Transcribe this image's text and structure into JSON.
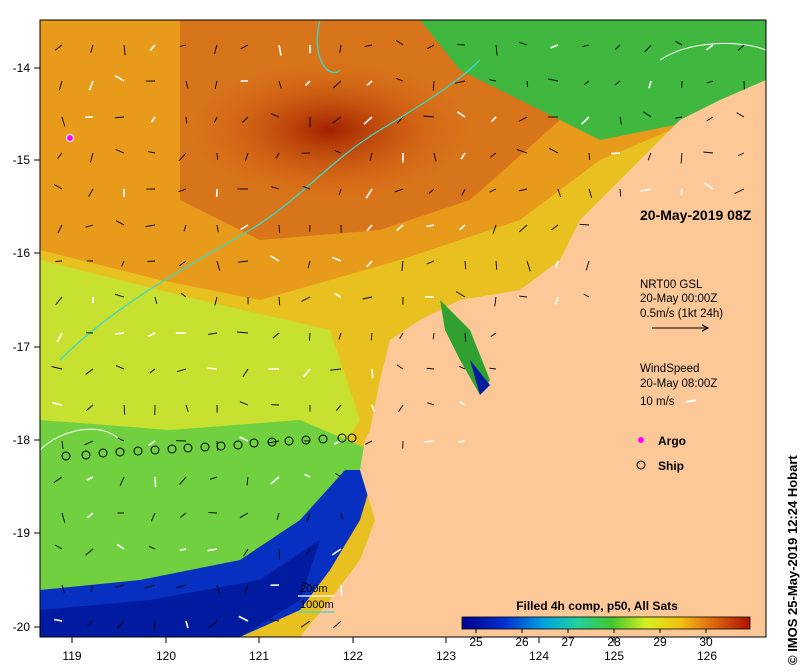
{
  "map": {
    "date_label": "20-May-2019 08Z",
    "x_ticks": [
      "119",
      "120",
      "121",
      "122",
      "123",
      "124",
      "125",
      "126"
    ],
    "y_ticks": [
      "-14",
      "-15",
      "-16",
      "-17",
      "-18",
      "-19",
      "-20"
    ],
    "currents_legend": {
      "line1": "NRT00 GSL",
      "line2": "20-May 00:00Z",
      "line3": "0.5m/s (1kt 24h)"
    },
    "wind_legend": {
      "line1": "WindSpeed",
      "line2": "20-May 08:00Z",
      "line3": "10 m/s"
    },
    "markers_legend": {
      "argo": "Argo",
      "ship": "Ship"
    },
    "contours_legend": {
      "c1": "200m",
      "c2": "1000m"
    },
    "colorbar": {
      "title": "Filled 4h comp, p50, All Sats",
      "ticks": [
        "25",
        "26",
        "27",
        "28",
        "29",
        "30"
      ]
    },
    "credit": "© IMOS 25-May-2019 12:24 Hobart",
    "colors": {
      "land": "#fdc898",
      "contour_200": "#3ad8c8",
      "contour_1000": "#ffffff",
      "argo": "#ff00ff"
    }
  }
}
